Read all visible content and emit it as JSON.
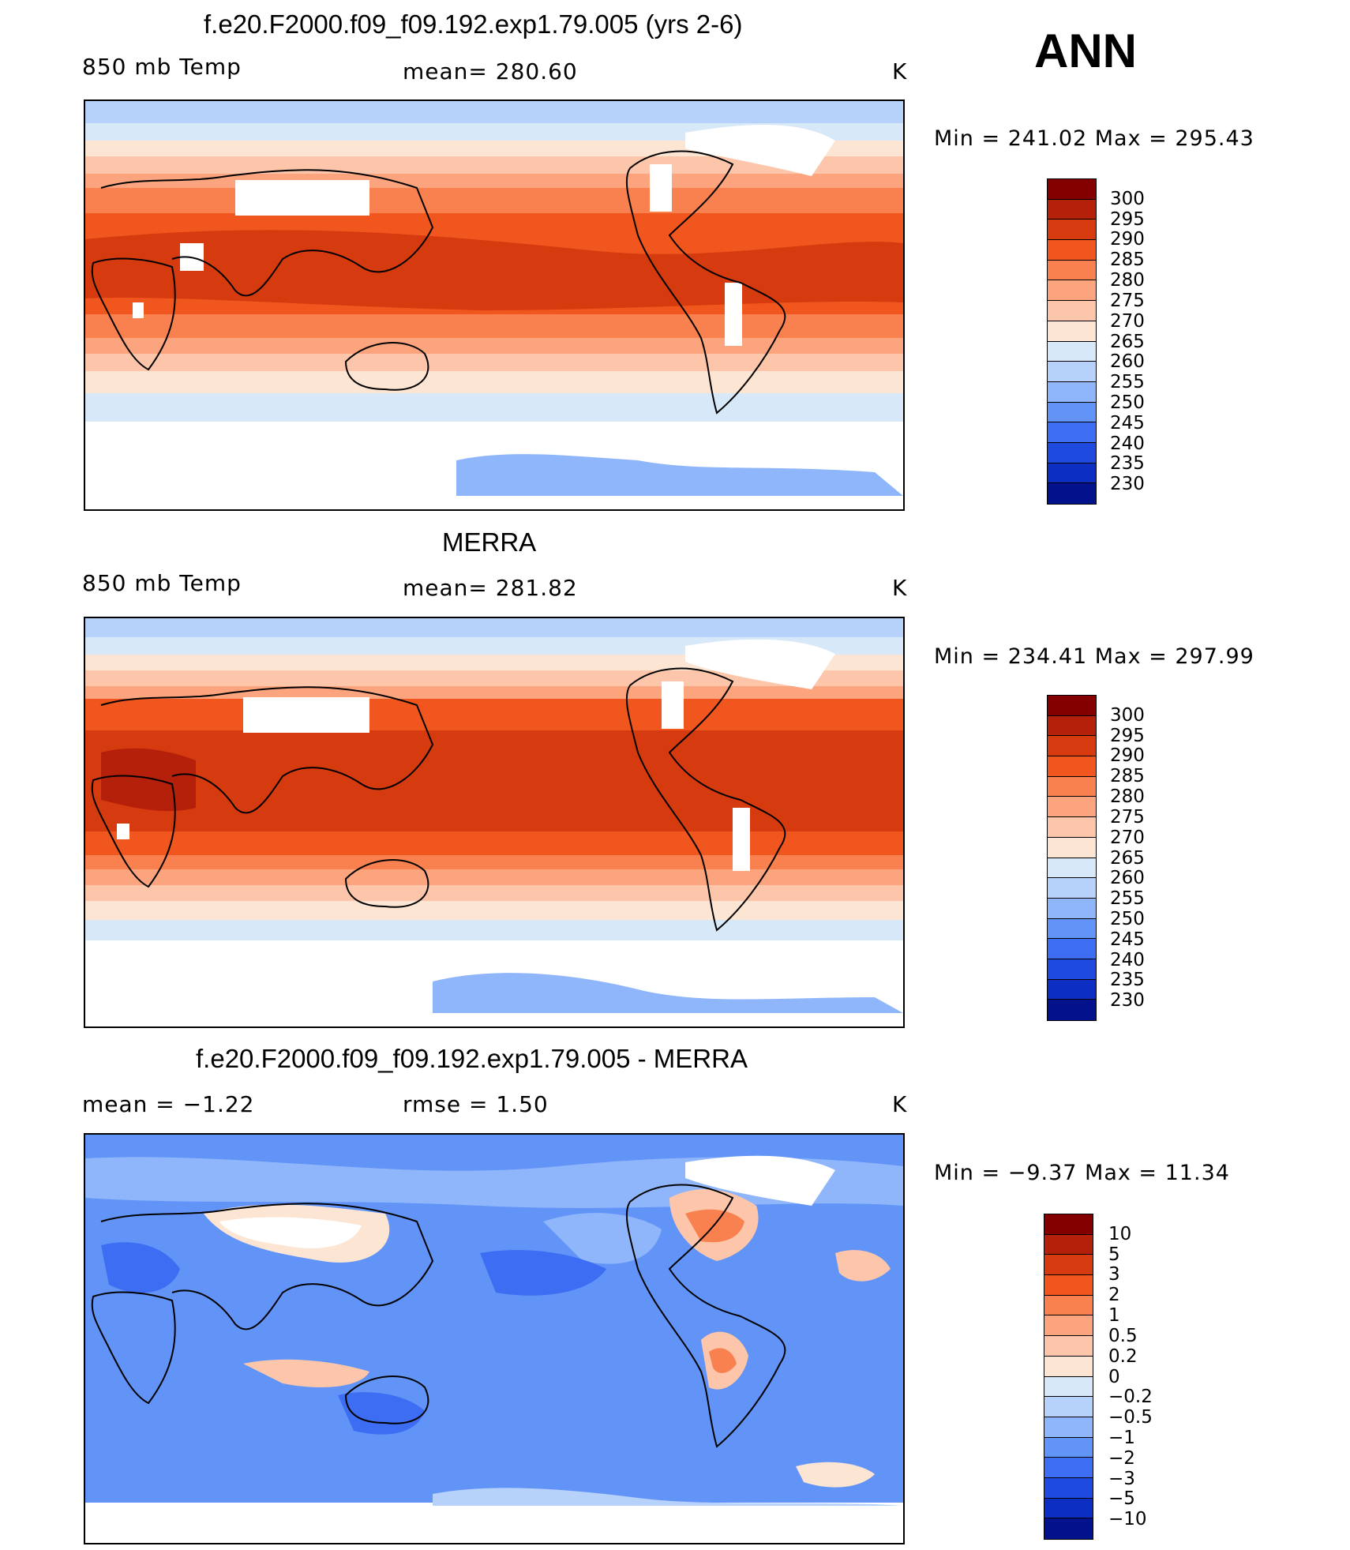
{
  "page_title": "ANN",
  "panels": [
    {
      "title": "f.e20.F2000.f09_f09.192.exp1.79.005 (yrs 2-6)",
      "left_label": "850 mb Temp",
      "center_label": "mean= 280.60",
      "units": "K",
      "minmax": "Min = 241.02 Max = 295.43",
      "colorbar": {
        "labels": [
          "300",
          "295",
          "290",
          "285",
          "280",
          "275",
          "270",
          "265",
          "260",
          "255",
          "250",
          "245",
          "240",
          "235",
          "230"
        ],
        "colors": [
          "#840000",
          "#b4200a",
          "#d63a0f",
          "#f0561e",
          "#f8814f",
          "#fba47e",
          "#fdc6aa",
          "#fde5d4",
          "#d7e8f9",
          "#b6d2fb",
          "#8fb6fb",
          "#6294f8",
          "#3c6df2",
          "#1f4ae0",
          "#0c2ec3",
          "#02128c"
        ]
      }
    },
    {
      "title": "MERRA",
      "left_label": "850 mb Temp",
      "center_label": "mean= 281.82",
      "units": "K",
      "minmax": "Min = 234.41 Max = 297.99",
      "colorbar": {
        "labels": [
          "300",
          "295",
          "290",
          "285",
          "280",
          "275",
          "270",
          "265",
          "260",
          "255",
          "250",
          "245",
          "240",
          "235",
          "230"
        ],
        "colors": [
          "#840000",
          "#b4200a",
          "#d63a0f",
          "#f0561e",
          "#f8814f",
          "#fba47e",
          "#fdc6aa",
          "#fde5d4",
          "#d7e8f9",
          "#b6d2fb",
          "#8fb6fb",
          "#6294f8",
          "#3c6df2",
          "#1f4ae0",
          "#0c2ec3",
          "#02128c"
        ]
      }
    },
    {
      "title": "f.e20.F2000.f09_f09.192.exp1.79.005 - MERRA",
      "left_label": "mean = −1.22",
      "center_label": "rmse = 1.50",
      "units": "K",
      "minmax": "Min = −9.37 Max = 11.34",
      "colorbar": {
        "labels": [
          "10",
          "5",
          "3",
          "2",
          "1",
          "0.5",
          "0.2",
          "0",
          "−0.2",
          "−0.5",
          "−1",
          "−2",
          "−3",
          "−5",
          "−10"
        ],
        "colors": [
          "#840000",
          "#b4200a",
          "#d63a0f",
          "#f0561e",
          "#f8814f",
          "#fba47e",
          "#fdc6aa",
          "#fde5d4",
          "#d7e8f9",
          "#b6d2fb",
          "#8fb6fb",
          "#6294f8",
          "#3c6df2",
          "#1f4ae0",
          "#0c2ec3",
          "#02128c"
        ]
      }
    }
  ]
}
